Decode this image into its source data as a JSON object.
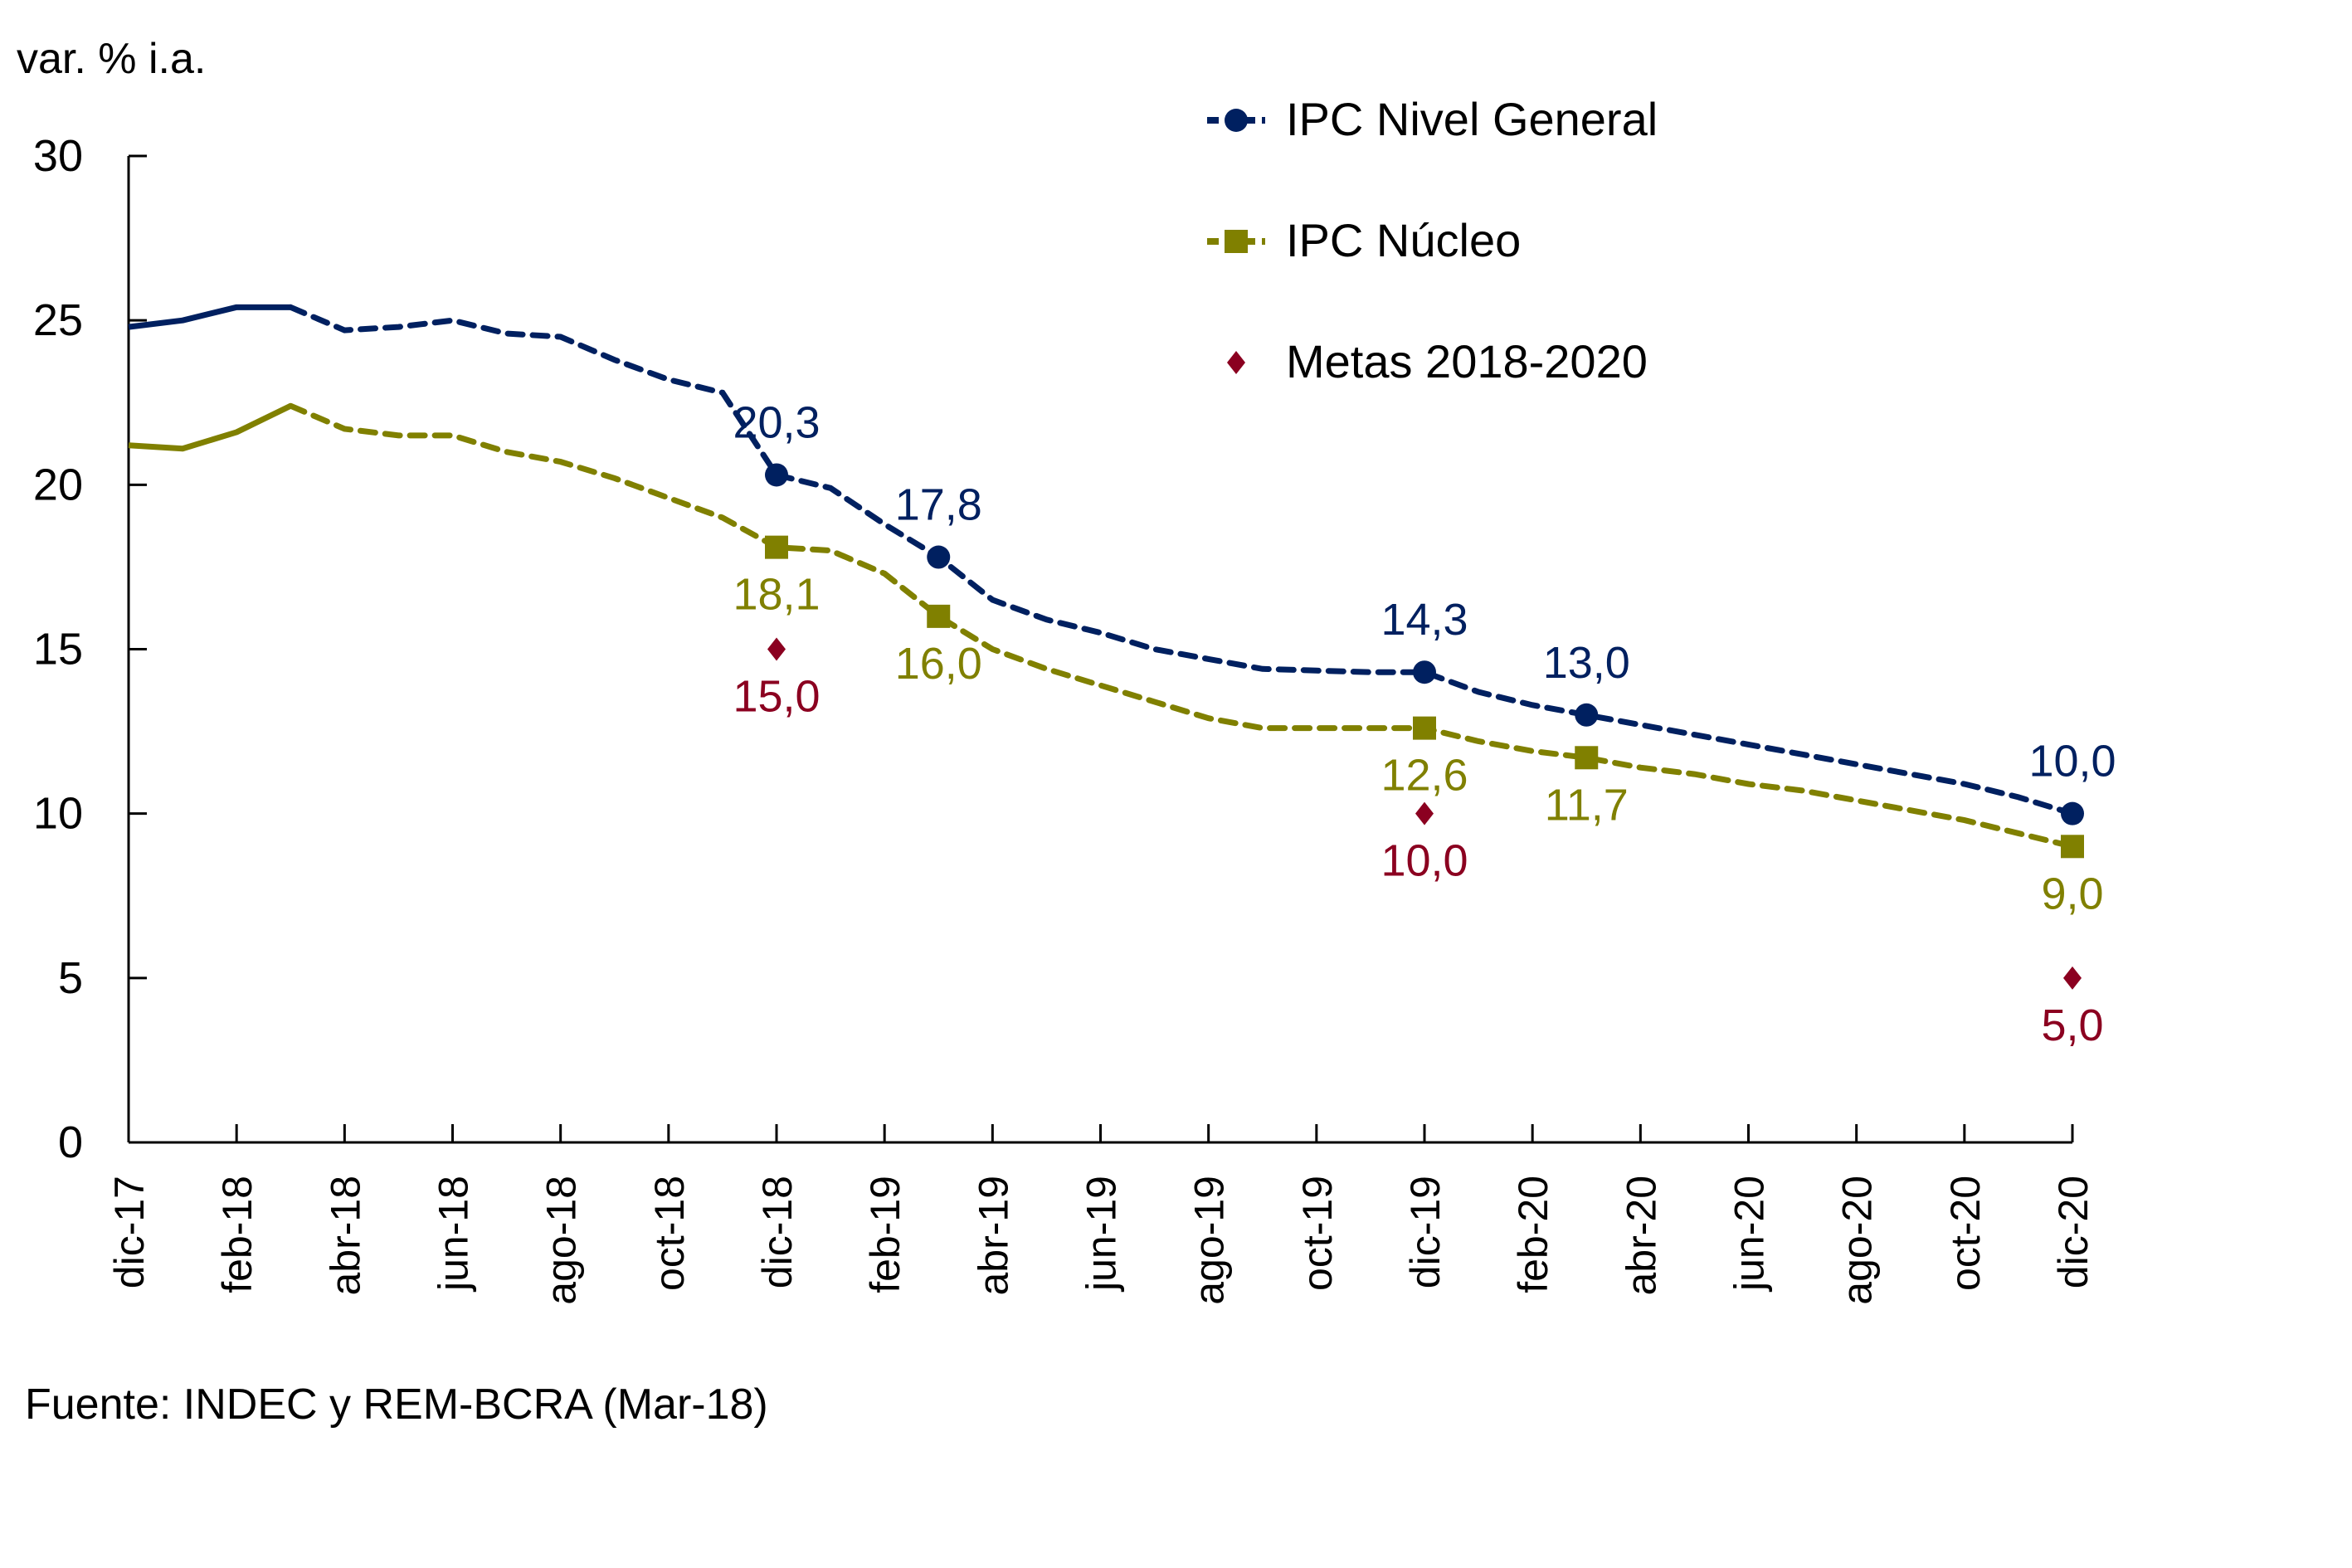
{
  "chart_data": {
    "type": "line",
    "title": "",
    "ylabel": "var. % i.a.",
    "xlabel": "",
    "ylim": [
      0,
      30
    ],
    "yticks": [
      0,
      5,
      10,
      15,
      20,
      25,
      30
    ],
    "grid": false,
    "legend_position": "top-right",
    "source": "Fuente: INDEC y REM-BCRA (Mar-18)",
    "x": [
      "dic-17",
      "ene-18",
      "feb-18",
      "mar-18",
      "abr-18",
      "may-18",
      "jun-18",
      "jul-18",
      "ago-18",
      "sep-18",
      "oct-18",
      "nov-18",
      "dic-18",
      "ene-19",
      "feb-19",
      "mar-19",
      "abr-19",
      "may-19",
      "jun-19",
      "jul-19",
      "ago-19",
      "sep-19",
      "oct-19",
      "nov-19",
      "dic-19",
      "ene-20",
      "feb-20",
      "mar-20",
      "abr-20",
      "may-20",
      "jun-20",
      "jul-20",
      "ago-20",
      "sep-20",
      "oct-20",
      "nov-20",
      "dic-20"
    ],
    "xtick_labels": [
      "dic-17",
      "feb-18",
      "abr-18",
      "jun-18",
      "ago-18",
      "oct-18",
      "dic-18",
      "feb-19",
      "abr-19",
      "jun-19",
      "ago-19",
      "oct-19",
      "dic-19",
      "feb-20",
      "abr-20",
      "jun-20",
      "ago-20",
      "oct-20",
      "dic-20"
    ],
    "observed_until_index": 3,
    "series": [
      {
        "name": "IPC Nivel General",
        "color": "#002060",
        "marker": "circle",
        "values": [
          24.8,
          25.0,
          25.4,
          25.4,
          24.7,
          24.8,
          25.0,
          24.6,
          24.5,
          23.8,
          23.2,
          22.8,
          20.3,
          19.9,
          18.8,
          17.8,
          16.5,
          15.9,
          15.5,
          15.0,
          14.7,
          14.4,
          14.35,
          14.3,
          14.3,
          13.7,
          13.3,
          13.0,
          12.7,
          12.4,
          12.1,
          11.8,
          11.5,
          11.2,
          10.9,
          10.5,
          10.0
        ],
        "labeled_points": [
          {
            "index": 12,
            "label": "20,3"
          },
          {
            "index": 15,
            "label": "17,8"
          },
          {
            "index": 24,
            "label": "14,3"
          },
          {
            "index": 27,
            "label": "13,0"
          },
          {
            "index": 36,
            "label": "10,0"
          }
        ]
      },
      {
        "name": "IPC Núcleo",
        "color": "#808000",
        "marker": "square",
        "values": [
          21.2,
          21.1,
          21.6,
          22.4,
          21.7,
          21.5,
          21.5,
          21.0,
          20.7,
          20.2,
          19.6,
          19.0,
          18.1,
          18.0,
          17.3,
          16.0,
          15.0,
          14.4,
          13.9,
          13.4,
          12.9,
          12.6,
          12.6,
          12.6,
          12.6,
          12.2,
          11.9,
          11.7,
          11.4,
          11.2,
          10.9,
          10.7,
          10.4,
          10.1,
          9.8,
          9.4,
          9.0
        ],
        "labeled_points": [
          {
            "index": 12,
            "label": "18,1"
          },
          {
            "index": 15,
            "label": "16,0"
          },
          {
            "index": 24,
            "label": "12,6"
          },
          {
            "index": 27,
            "label": "11,7"
          },
          {
            "index": 36,
            "label": "9,0"
          }
        ]
      },
      {
        "name": "Metas 2018-2020",
        "color": "#8B0020",
        "marker": "diamond",
        "points": [
          {
            "index": 12,
            "value": 15.0,
            "label": "15,0"
          },
          {
            "index": 24,
            "value": 10.0,
            "label": "10,0"
          },
          {
            "index": 36,
            "value": 5.0,
            "label": "5,0"
          }
        ]
      }
    ]
  }
}
